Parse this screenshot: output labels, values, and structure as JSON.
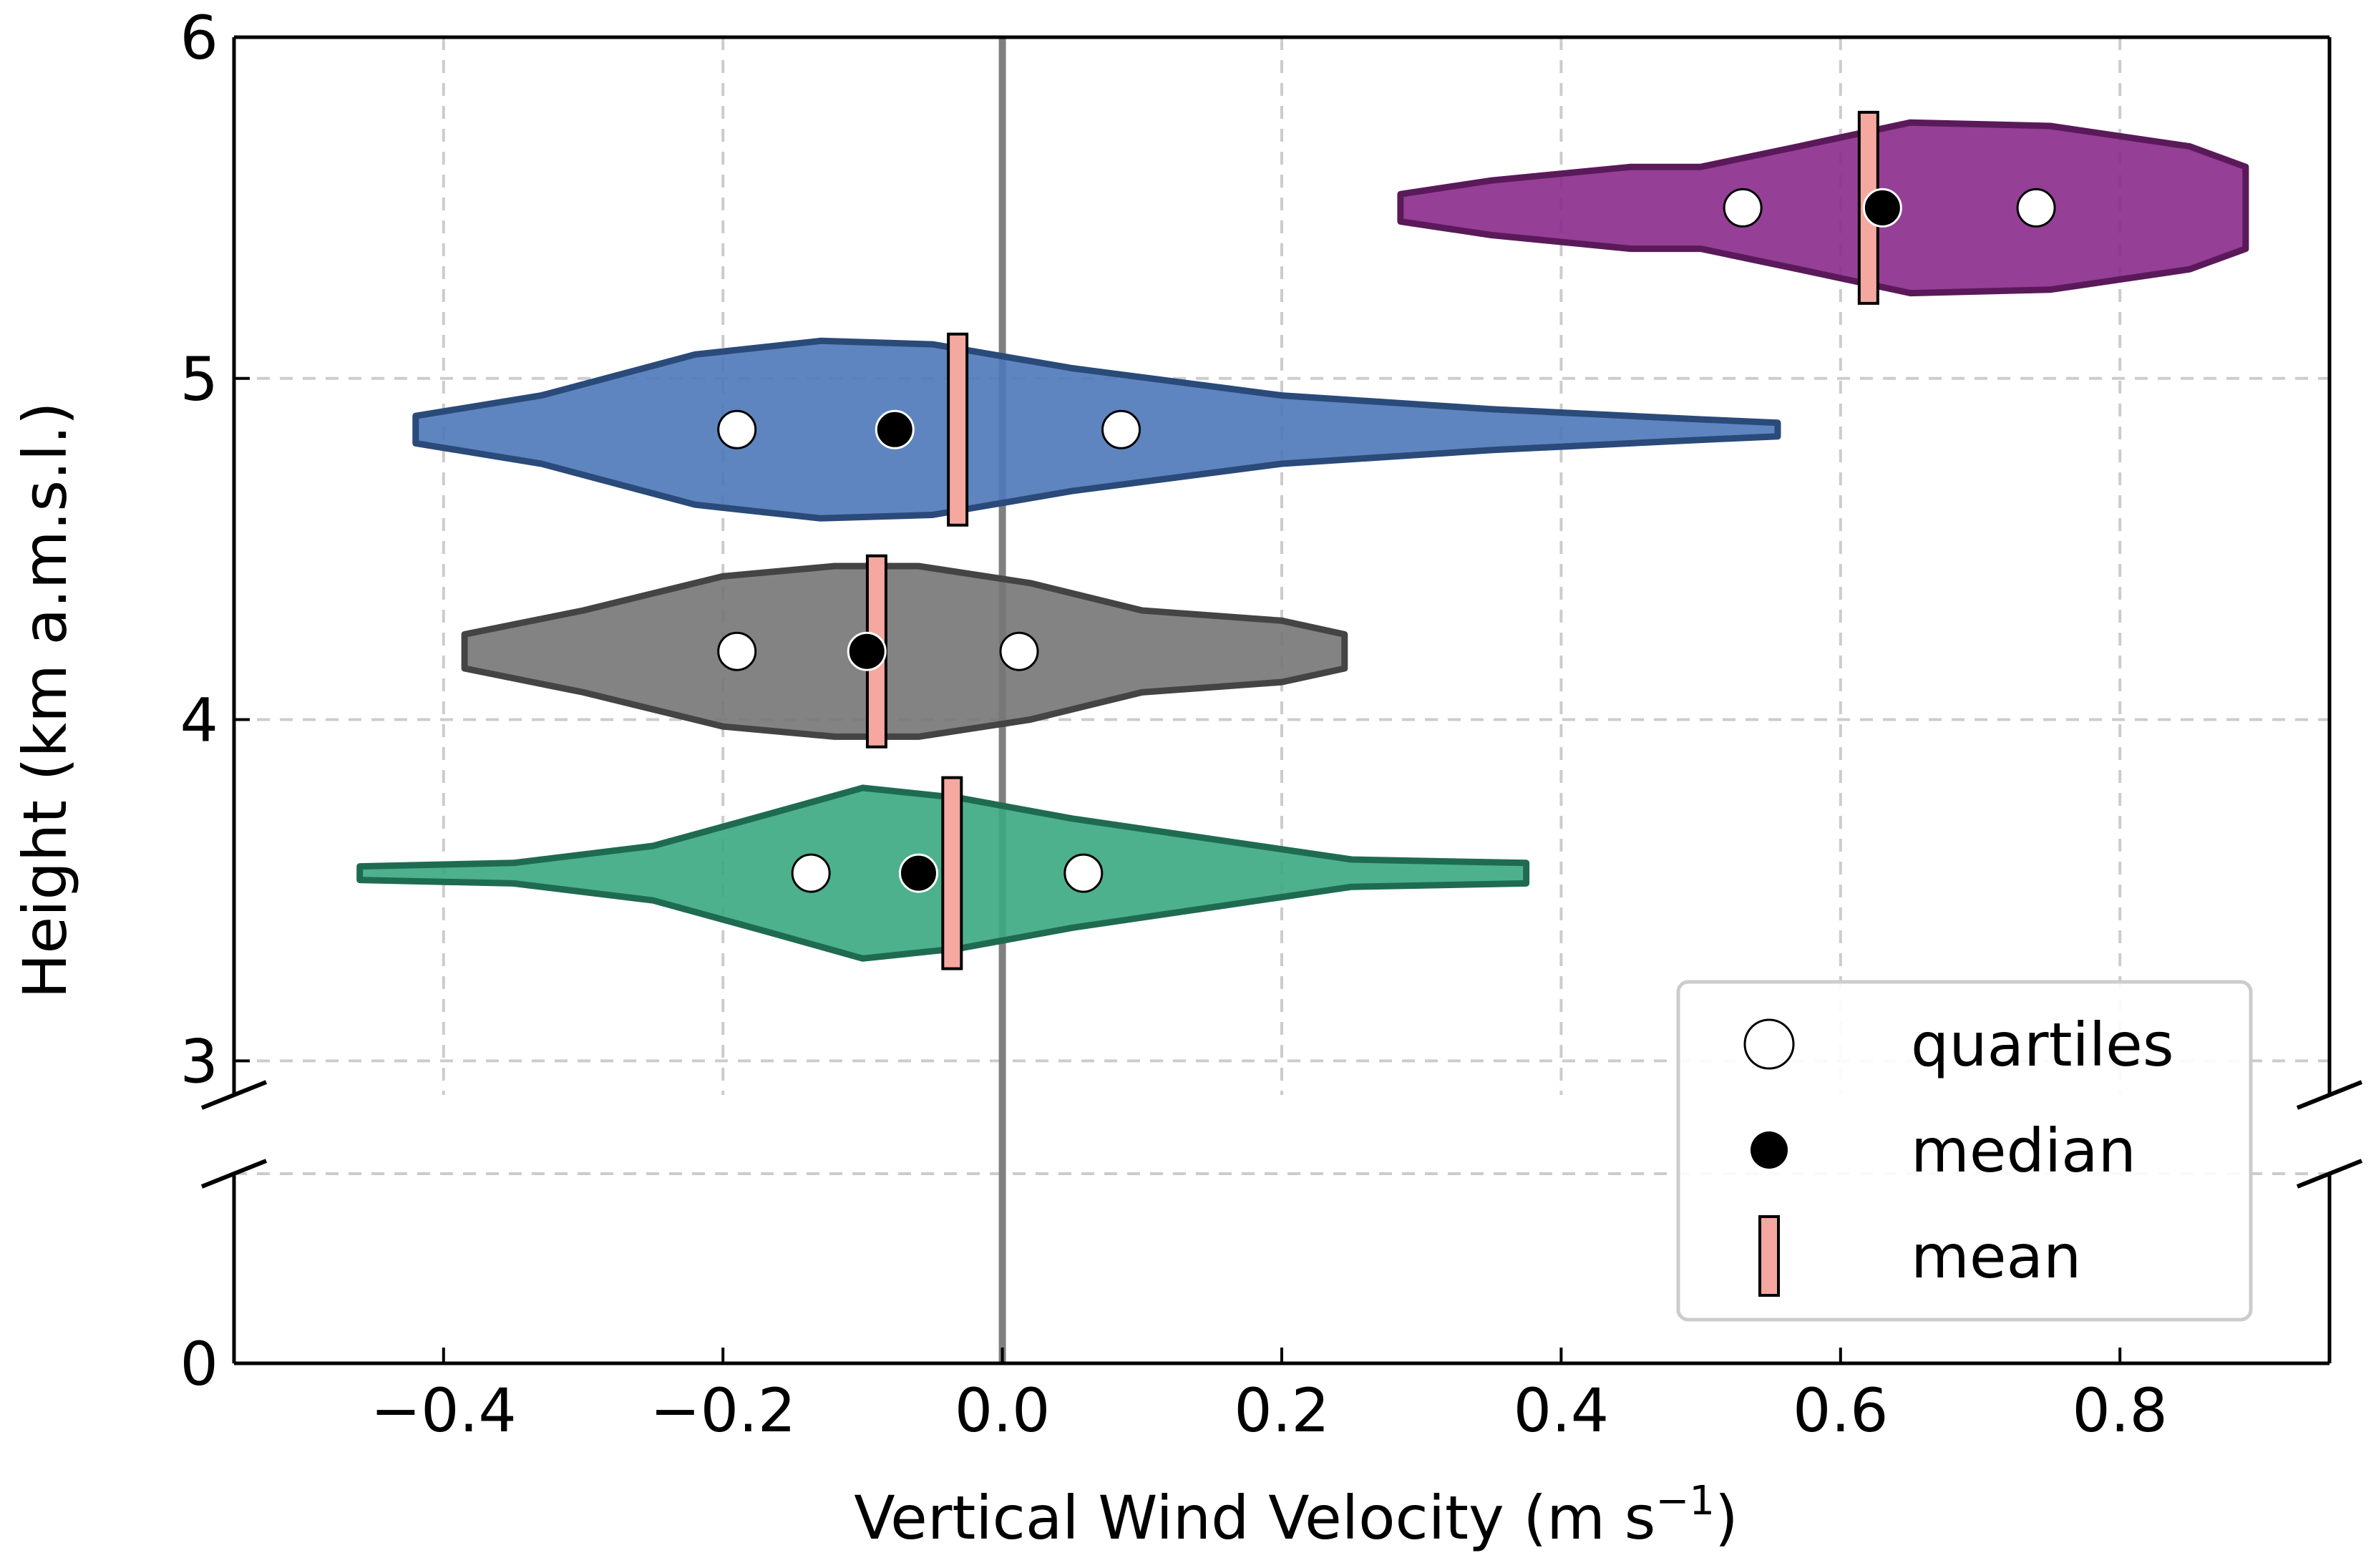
{
  "chart_data": {
    "type": "violin",
    "orientation": "horizontal",
    "xlabel": "Vertical Wind Velocity (m s",
    "xlabel_sup": "−1",
    "xlabel_end": ")",
    "ylabel": "Height (km a.m.s.l.)",
    "xlim": [
      -0.55,
      0.95
    ],
    "ylim_upper": [
      2.9,
      6.0
    ],
    "ylim_lower": [
      0,
      0.5
    ],
    "broken_y_axis": true,
    "grid": true,
    "grid_style": "dashed",
    "xticks": [
      -0.4,
      -0.2,
      0.0,
      0.2,
      0.4,
      0.6,
      0.8
    ],
    "xtick_labels": [
      "−0.4",
      "−0.2",
      "0.0",
      "0.2",
      "0.4",
      "0.6",
      "0.8"
    ],
    "yticks_upper": [
      3,
      4,
      5,
      6
    ],
    "ytick_labels_upper": [
      "3",
      "4",
      "5",
      "6"
    ],
    "yticks_lower": [
      0
    ],
    "ytick_labels_lower": [
      "0"
    ],
    "zero_line_x": 0.0,
    "series": [
      {
        "height": 5.5,
        "color": "#8b2a8b",
        "edge": "#5a1a5a",
        "min": 0.285,
        "max": 0.89,
        "quartiles": [
          0.53,
          0.74
        ],
        "median": 0.63,
        "mean": 0.62,
        "profile": [
          [
            0.285,
            0.04
          ],
          [
            0.35,
            0.08
          ],
          [
            0.45,
            0.12
          ],
          [
            0.5,
            0.12
          ],
          [
            0.57,
            0.18
          ],
          [
            0.65,
            0.25
          ],
          [
            0.75,
            0.24
          ],
          [
            0.85,
            0.18
          ],
          [
            0.89,
            0.12
          ]
        ]
      },
      {
        "height": 4.85,
        "color": "#4c78b8",
        "edge": "#2a4a7a",
        "min": -0.42,
        "max": 0.555,
        "quartiles": [
          -0.19,
          0.085
        ],
        "median": -0.077,
        "mean": -0.032,
        "profile": [
          [
            -0.42,
            0.04
          ],
          [
            -0.33,
            0.1
          ],
          [
            -0.22,
            0.22
          ],
          [
            -0.13,
            0.26
          ],
          [
            -0.05,
            0.25
          ],
          [
            0.05,
            0.18
          ],
          [
            0.2,
            0.1
          ],
          [
            0.35,
            0.06
          ],
          [
            0.5,
            0.03
          ],
          [
            0.555,
            0.02
          ]
        ]
      },
      {
        "height": 4.2,
        "color": "#767676",
        "edge": "#444444",
        "min": -0.385,
        "max": 0.245,
        "quartiles": [
          -0.19,
          0.012
        ],
        "median": -0.097,
        "mean": -0.09,
        "profile": [
          [
            -0.385,
            0.05
          ],
          [
            -0.3,
            0.12
          ],
          [
            -0.2,
            0.22
          ],
          [
            -0.12,
            0.25
          ],
          [
            -0.06,
            0.25
          ],
          [
            0.02,
            0.2
          ],
          [
            0.1,
            0.12
          ],
          [
            0.2,
            0.09
          ],
          [
            0.245,
            0.05
          ]
        ]
      },
      {
        "height": 3.55,
        "color": "#3aa882",
        "edge": "#1f6b52",
        "min": -0.46,
        "max": 0.375,
        "quartiles": [
          -0.137,
          0.058
        ],
        "median": -0.06,
        "mean": -0.036,
        "profile": [
          [
            -0.46,
            0.02
          ],
          [
            -0.35,
            0.03
          ],
          [
            -0.25,
            0.08
          ],
          [
            -0.17,
            0.17
          ],
          [
            -0.1,
            0.25
          ],
          [
            -0.03,
            0.22
          ],
          [
            0.05,
            0.16
          ],
          [
            0.15,
            0.1
          ],
          [
            0.25,
            0.04
          ],
          [
            0.375,
            0.03
          ]
        ]
      }
    ],
    "legend": {
      "placement": "lower-right",
      "entries": [
        {
          "label": "quartiles",
          "marker": "open-circle"
        },
        {
          "label": "median",
          "marker": "filled-circle"
        },
        {
          "label": "mean",
          "marker": "bar",
          "color": "#f4a8a0"
        }
      ]
    }
  }
}
